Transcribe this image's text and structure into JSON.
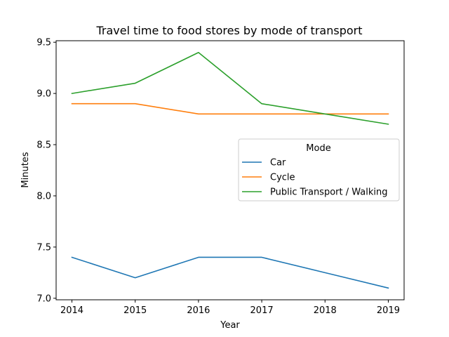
{
  "chart_data": {
    "type": "line",
    "title": "Travel time to food stores by mode of transport",
    "xlabel": "Year",
    "ylabel": "Minutes",
    "x": [
      2014,
      2015,
      2016,
      2017,
      2018,
      2019
    ],
    "xticks": [
      "2014",
      "2015",
      "2016",
      "2017",
      "2018",
      "2019"
    ],
    "yticks": [
      "7.0",
      "7.5",
      "8.0",
      "8.5",
      "9.0",
      "9.5"
    ],
    "ylim": [
      6.985,
      9.515
    ],
    "xlim": [
      2013.75,
      2019.25
    ],
    "grid": false,
    "legend": {
      "title": "Mode",
      "placement": "center-right"
    },
    "series": [
      {
        "name": "Car",
        "color": "#1f77b4",
        "values": [
          7.4,
          7.2,
          7.4,
          7.4,
          7.25,
          7.1
        ]
      },
      {
        "name": "Cycle",
        "color": "#ff7f0e",
        "values": [
          8.9,
          8.9,
          8.8,
          8.8,
          8.8,
          8.8
        ]
      },
      {
        "name": "Public Transport / Walking",
        "color": "#2ca02c",
        "values": [
          9.0,
          9.1,
          9.4,
          8.9,
          8.8,
          8.7
        ]
      }
    ]
  }
}
